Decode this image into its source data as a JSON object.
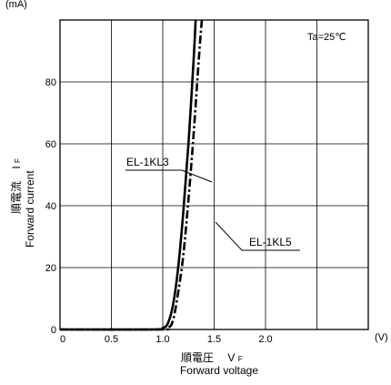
{
  "chart_data": {
    "type": "line",
    "y_unit": "(mA)",
    "x_unit": "(V)",
    "condition": "Ta=25℃",
    "xlim": [
      0,
      3.0
    ],
    "ylim": [
      0,
      100
    ],
    "x_ticks": [
      "0",
      "0.5",
      "1.0",
      "1.5",
      "2.0"
    ],
    "y_ticks": [
      "0",
      "20",
      "40",
      "60",
      "80"
    ],
    "grid": true,
    "ylabel": {
      "jp": "順電流",
      "sym": "I",
      "sub": "F",
      "en": "Forward current"
    },
    "xlabel": {
      "jp": "順電圧",
      "sym": "V",
      "sub": "F",
      "en": "Forward voltage"
    },
    "series": [
      {
        "name": "EL-1KL3",
        "style": "solid",
        "x": [
          0.0,
          0.9,
          1.0,
          1.05,
          1.1,
          1.15,
          1.2,
          1.25,
          1.3,
          1.32
        ],
        "y": [
          0,
          0,
          0.5,
          2,
          8,
          20,
          38,
          60,
          87,
          100
        ]
      },
      {
        "name": "EL-1KL5",
        "style": "dashdot",
        "x": [
          0.0,
          0.95,
          1.05,
          1.1,
          1.15,
          1.2,
          1.25,
          1.3,
          1.35,
          1.38
        ],
        "y": [
          0,
          0,
          0.5,
          3,
          12,
          24,
          42,
          63,
          87,
          100
        ]
      }
    ]
  }
}
